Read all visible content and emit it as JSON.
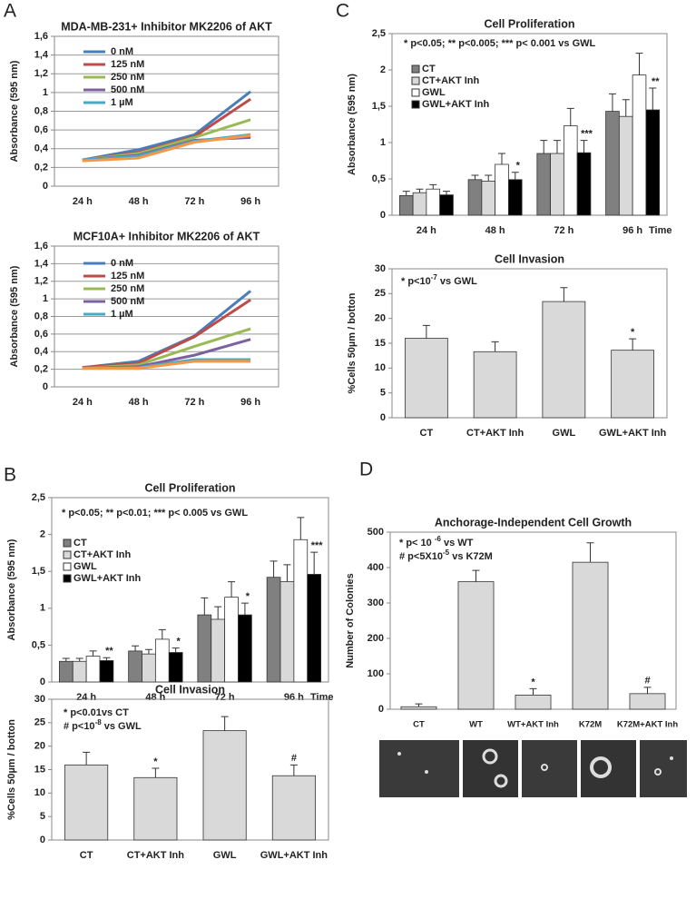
{
  "panels": [
    "A",
    "B",
    "C",
    "D"
  ],
  "chart_data": [
    {
      "type": "line",
      "title": "MDA-MB-231+ Inhibitor MK2206 of AKT",
      "y_label": "Absorbance (595 nm)",
      "grid": true,
      "categories": [
        "24 h",
        "48 h",
        "72 h",
        "96 h"
      ],
      "ylim": [
        0,
        1.6
      ],
      "yticks": [
        0,
        {
          "value": 0.2,
          "label": "0,2"
        },
        {
          "value": 0.4,
          "label": "0,4"
        },
        {
          "value": 0.6,
          "label": "0,6"
        },
        {
          "value": 0.8,
          "label": "0,8"
        },
        1,
        {
          "value": 1.2,
          "label": "1,2"
        },
        {
          "value": 1.4,
          "label": "1,4"
        },
        {
          "value": 1.6,
          "label": "1,6"
        }
      ],
      "series": [
        {
          "name": "0 nM",
          "color": "#4a7ebb",
          "values": [
            0.28,
            0.39,
            0.55,
            1.01
          ]
        },
        {
          "name": "125 nM",
          "color": "#be4b48",
          "values": [
            0.28,
            0.36,
            0.53,
            0.93
          ]
        },
        {
          "name": "250 nM",
          "color": "#98b954",
          "values": [
            0.28,
            0.35,
            0.52,
            0.71
          ]
        },
        {
          "name": "500 nM",
          "color": "#7d60a0",
          "values": [
            0.28,
            0.33,
            0.49,
            0.52
          ]
        },
        {
          "name": "1 µM",
          "color": "#46aac5",
          "values": [
            0.28,
            0.32,
            0.48,
            0.55
          ]
        },
        {
          "color": "#f79646",
          "values": [
            0.27,
            0.3,
            0.47,
            0.54
          ]
        }
      ]
    },
    {
      "type": "line",
      "title": "MCF10A+ Inhibitor MK2206 of AKT",
      "y_label": "Absorbance (595 nm)",
      "grid": true,
      "categories": [
        "24 h",
        "48 h",
        "72 h",
        "96 h"
      ],
      "ylim": [
        0,
        1.6
      ],
      "yticks": [
        0,
        {
          "value": 0.2,
          "label": "0,2"
        },
        {
          "value": 0.4,
          "label": "0,4"
        },
        {
          "value": 0.6,
          "label": "0,6"
        },
        {
          "value": 0.8,
          "label": "0,8"
        },
        1,
        {
          "value": 1.2,
          "label": "1,2"
        },
        {
          "value": 1.4,
          "label": "1,4"
        },
        {
          "value": 1.6,
          "label": "1,6"
        }
      ],
      "series": [
        {
          "name": "0 nM",
          "color": "#4a7ebb",
          "values": [
            0.22,
            0.29,
            0.58,
            1.09
          ]
        },
        {
          "name": "125 nM",
          "color": "#be4b48",
          "values": [
            0.22,
            0.27,
            0.57,
            0.99
          ]
        },
        {
          "name": "250 nM",
          "color": "#98b954",
          "values": [
            0.21,
            0.25,
            0.46,
            0.66
          ]
        },
        {
          "name": "500 nM",
          "color": "#7d60a0",
          "values": [
            0.21,
            0.23,
            0.36,
            0.54
          ]
        },
        {
          "name": "1 µM",
          "color": "#46aac5",
          "values": [
            0.21,
            0.22,
            0.31,
            0.31
          ]
        },
        {
          "color": "#f79646",
          "values": [
            0.21,
            0.21,
            0.29,
            0.29
          ]
        }
      ]
    },
    {
      "type": "bar",
      "title": "Cell Proliferation",
      "y_label": "Absorbance (595 nm)",
      "x_label": "Time",
      "annotations": [
        [
          "* p<0.05; ** p<0.005; *** p< 0.001 vs GWL"
        ]
      ],
      "categories": [
        "24 h",
        "48 h",
        "72 h",
        "96 h"
      ],
      "ylim": [
        0,
        2.5
      ],
      "yticks": [
        0,
        {
          "value": 0.5,
          "label": "0,5"
        },
        1,
        {
          "value": 1.5,
          "label": "1,5"
        },
        2,
        {
          "value": 2.5,
          "label": "2,5"
        }
      ],
      "series": [
        {
          "name": "CT",
          "color": "#808080",
          "values": [
            0.27,
            0.49,
            0.85,
            1.43
          ],
          "errors": [
            0.06,
            0.06,
            0.18,
            0.24
          ]
        },
        {
          "name": "CT+AKT Inh",
          "color": "#d9d9d9",
          "values": [
            0.31,
            0.47,
            0.85,
            1.36
          ],
          "errors": [
            0.05,
            0.08,
            0.18,
            0.23
          ]
        },
        {
          "name": "GWL",
          "color": "#ffffff",
          "values": [
            0.36,
            0.7,
            1.23,
            1.93
          ],
          "errors": [
            0.06,
            0.15,
            0.24,
            0.3
          ]
        },
        {
          "name": "GWL+AKT Inh",
          "color": "#000000",
          "values": [
            0.28,
            0.49,
            0.86,
            1.45
          ],
          "errors": [
            0.05,
            0.1,
            0.17,
            0.3
          ],
          "markers": [
            null,
            "*",
            "***",
            "**"
          ]
        }
      ]
    },
    {
      "type": "bar",
      "title": "Cell Invasion",
      "y_label": "%Cells 50µm / botton",
      "annotations": [
        [
          "* p<10",
          "-7",
          " vs  GWL"
        ]
      ],
      "categories": [
        "CT",
        "CT+AKT Inh",
        "GWL",
        "GWL+AKT Inh"
      ],
      "ylim": [
        0,
        30
      ],
      "yticks": [
        0,
        5,
        10,
        15,
        20,
        25,
        30
      ],
      "color": "#d9d9d9",
      "values": [
        16,
        13.3,
        23.4,
        13.6
      ],
      "errors": [
        2.6,
        2.0,
        2.8,
        2.3
      ],
      "markers": [
        null,
        null,
        null,
        "*"
      ]
    },
    {
      "type": "bar",
      "title": "Cell Proliferation",
      "y_label": "Absorbance (595 nm)",
      "x_label": "Time",
      "annotations": [
        [
          "* p<0.05; ** p<0.01; *** p< 0.005 vs GWL"
        ]
      ],
      "categories": [
        "24 h",
        "48 h",
        "72 h",
        "96 h"
      ],
      "ylim": [
        0,
        2.5
      ],
      "yticks": [
        0,
        {
          "value": 0.5,
          "label": "0,5"
        },
        1,
        {
          "value": 1.5,
          "label": "1,5"
        },
        2,
        {
          "value": 2.5,
          "label": "2,5"
        }
      ],
      "series": [
        {
          "name": "CT",
          "color": "#808080",
          "values": [
            0.28,
            0.42,
            0.91,
            1.42
          ],
          "errors": [
            0.04,
            0.07,
            0.23,
            0.22
          ]
        },
        {
          "name": "CT+AKT Inh",
          "color": "#d9d9d9",
          "values": [
            0.28,
            0.38,
            0.85,
            1.36
          ],
          "errors": [
            0.04,
            0.06,
            0.17,
            0.23
          ]
        },
        {
          "name": "GWL",
          "color": "#ffffff",
          "values": [
            0.35,
            0.58,
            1.15,
            1.93
          ],
          "errors": [
            0.07,
            0.13,
            0.21,
            0.3
          ]
        },
        {
          "name": "GWL+AKT Inh",
          "color": "#000000",
          "values": [
            0.29,
            0.4,
            0.91,
            1.46
          ],
          "errors": [
            0.04,
            0.06,
            0.16,
            0.3
          ],
          "markers": [
            "**",
            "*",
            "*",
            "***"
          ]
        }
      ]
    },
    {
      "type": "bar",
      "title": "Cell Invasion",
      "y_label": "%Cells 50µm / botton",
      "annotations": [
        [
          "* p<0.01vs CT"
        ],
        [
          "# p<10",
          "-8",
          " vs  GWL"
        ]
      ],
      "categories": [
        "CT",
        "CT+AKT Inh",
        "GWL",
        "GWL+AKT Inh"
      ],
      "ylim": [
        0,
        30
      ],
      "yticks": [
        0,
        5,
        10,
        15,
        20,
        25,
        30
      ],
      "color": "#d9d9d9",
      "values": [
        16,
        13.3,
        23.3,
        13.7
      ],
      "errors": [
        2.7,
        2.0,
        3.0,
        2.3
      ],
      "markers": [
        null,
        "*",
        null,
        "#"
      ]
    },
    {
      "type": "bar",
      "title": "Anchorage-Independent Cell Growth",
      "y_label": "Number of Colonies",
      "annotations": [
        [
          "* p< 10 ",
          "-6",
          " vs  WT"
        ],
        [
          "#  p<5X10",
          "-5",
          " vs  K72M"
        ]
      ],
      "categories": [
        "CT",
        "WT",
        "WT+AKT Inh",
        "K72M",
        "K72M+AKT Inh"
      ],
      "ylim": [
        0,
        500
      ],
      "yticks": [
        0,
        100,
        200,
        300,
        400,
        500
      ],
      "color": "#d9d9d9",
      "values": [
        7,
        360,
        40,
        415,
        44
      ],
      "errors": [
        8,
        32,
        18,
        55,
        18
      ],
      "markers": [
        null,
        null,
        "*",
        null,
        "#"
      ]
    }
  ]
}
